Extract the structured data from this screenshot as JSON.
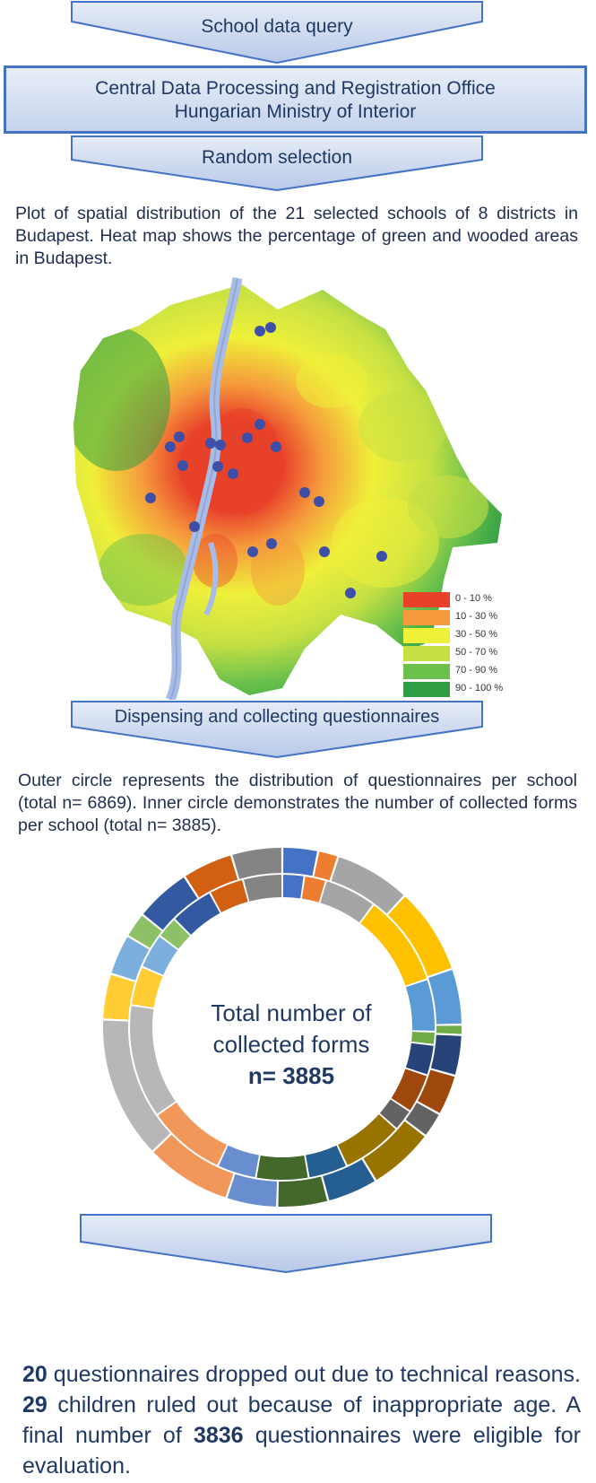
{
  "steps": {
    "query_label": "School data query",
    "office_line1": "Central Data Processing and Registration Office",
    "office_line2": "Hungarian Ministry of Interior",
    "selection_label": "Random selection",
    "dispense_label": "Dispensing and collecting questionnaires"
  },
  "map": {
    "caption": "Plot of spatial distribution of the 21 selected schools of 8 districts in Budapest. Heat map shows the percentage of green and wooded areas in Budapest.",
    "legend": [
      {
        "label": "0 - 10 %",
        "color": "#e8412a"
      },
      {
        "label": "10 - 30 %",
        "color": "#f59a3c"
      },
      {
        "label": "30 - 50 %",
        "color": "#eff03a"
      },
      {
        "label": "50 - 70 %",
        "color": "#c6e044"
      },
      {
        "label": "70 - 90 %",
        "color": "#6cc14c"
      },
      {
        "label": "90 - 100 %",
        "color": "#2f9e44"
      }
    ],
    "water_color": "#a9bce6",
    "school_marker_color": "#3e4fa8"
  },
  "donut": {
    "caption": "Outer circle represents the distribution of questionnaires per school (total n= 6869). Inner circle demonstrates the number of collected  forms per school (total n= 3885).",
    "center_line1": "Total number of",
    "center_line2": "collected forms",
    "center_line3": "n= 3885",
    "palette": [
      "#4472c4",
      "#ed7d31",
      "#a5a5a5",
      "#ffc000",
      "#5b9bd5",
      "#70ad47",
      "#264478",
      "#9e480e",
      "#636363",
      "#997300",
      "#255e91",
      "#43682b",
      "#698ed0",
      "#f1975a",
      "#b7b7b7",
      "#ffcd33",
      "#7cafdd",
      "#8cc168",
      "#335aa1",
      "#d26012",
      "#848484"
    ]
  },
  "final_text": {
    "n1": "20",
    "t1": " questionnaires dropped out due to technical reasons. ",
    "n2": "29",
    "t2": " children ruled out because of inappropriate age. A final number of ",
    "n3": "3836",
    "t3": " questionnaires were eligible for evaluation."
  }
}
